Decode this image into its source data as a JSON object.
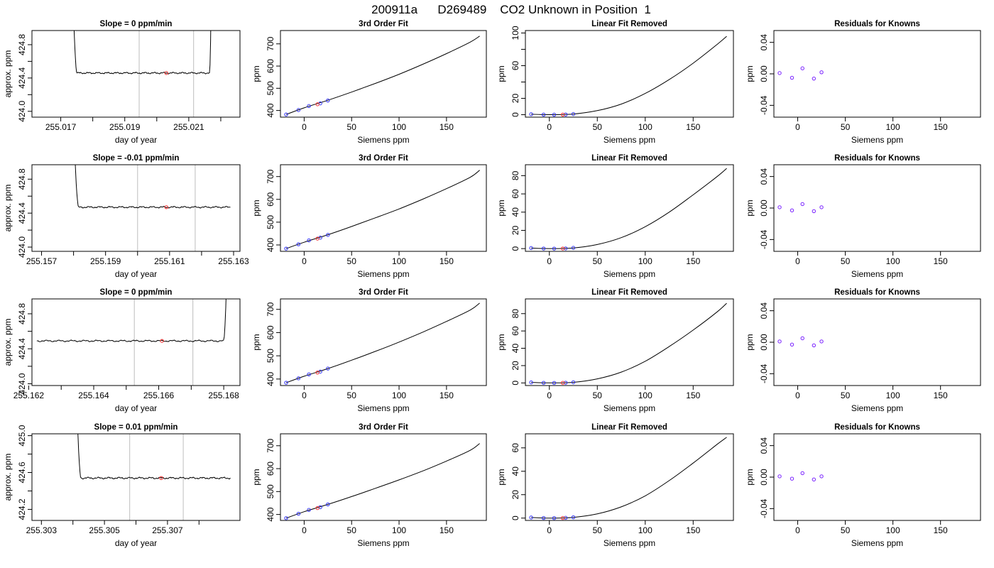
{
  "page": {
    "title": "200911a      D269489    CO2 Unknown in Position  1"
  },
  "colors": {
    "known_points": "#3333ff",
    "unknown_point": "#ff3333",
    "grid_lines": "#c8c8c8",
    "curve": "#000000"
  },
  "rows": [
    {
      "time": {
        "type": "line",
        "title": "Slope =  0  ppm/min",
        "xlabel": "day of year",
        "ylabel": "approx. ppm",
        "xlim": [
          255.0161,
          255.0226
        ],
        "ylim": [
          423.93,
          424.97
        ],
        "xticks": [
          "255.017",
          "255.019",
          "255.021"
        ],
        "xtick_values": [
          255.017,
          255.019,
          255.021
        ],
        "xminor_ticks": [
          255.018,
          255.02,
          255.022
        ],
        "yticks": [
          "424.0",
          "424.4",
          "424.8"
        ],
        "ytick_values": [
          424.0,
          424.4,
          424.8
        ],
        "yminor_ticks": [
          424.2,
          424.6
        ],
        "vlines": [
          255.01945,
          255.02115
        ],
        "trace": {
          "start": 255.01725,
          "end": 255.02175,
          "baseline": 424.46,
          "noise": 0.012,
          "rise_left": 255.0175,
          "rise_right": 255.02165
        },
        "unknown_point": [
          255.0203,
          424.46
        ]
      },
      "cubic": {
        "type": "line",
        "title": "3rd Order Fit",
        "xlabel": "Siemens ppm",
        "ylabel": "ppm",
        "xlim": [
          -25,
          192
        ],
        "ylim": [
          370,
          760
        ],
        "xticks": [
          "0",
          "50",
          "100",
          "150"
        ],
        "xtick_values": [
          0,
          50,
          100,
          150
        ],
        "yticks": [
          "400",
          "500",
          "600",
          "700"
        ],
        "ytick_values": [
          400,
          500,
          600,
          700
        ],
        "knowns": [
          [
            -19,
            382
          ],
          [
            -6,
            402
          ],
          [
            5,
            420
          ],
          [
            17,
            432
          ],
          [
            25,
            445
          ]
        ],
        "unknown": [
          14,
          428
        ],
        "curve_x": [
          -19,
          0,
          25,
          50,
          75,
          100,
          125,
          150,
          175,
          185
        ],
        "curve_y": [
          382,
          412,
          446,
          483,
          522,
          563,
          608,
          656,
          708,
          735
        ]
      },
      "linear_removed": {
        "type": "line",
        "title": "Linear Fit Removed",
        "xlabel": "Siemens ppm",
        "ylabel": "ppm",
        "xlim": [
          -25,
          192
        ],
        "ylim": [
          -3,
          103
        ],
        "xticks": [
          "0",
          "50",
          "100",
          "150"
        ],
        "xtick_values": [
          0,
          50,
          100,
          150
        ],
        "yticks": [
          "0",
          "20",
          "60",
          "100"
        ],
        "ytick_values": [
          0,
          20,
          60,
          100
        ],
        "yminor_ticks": [
          40,
          80
        ],
        "knowns": [
          [
            -19,
            0.6
          ],
          [
            -6,
            0.1
          ],
          [
            5,
            0
          ],
          [
            17,
            0.2
          ],
          [
            25,
            0.8
          ]
        ],
        "unknown": [
          14,
          0.1
        ],
        "curve_x": [
          -19,
          0,
          25,
          50,
          75,
          100,
          125,
          150,
          175,
          185
        ],
        "curve_y": [
          0.6,
          0,
          0.8,
          5,
          13,
          26,
          43,
          63,
          86,
          96
        ]
      },
      "residuals": {
        "type": "scatter",
        "title": "Residuals for Knowns",
        "xlabel": "Siemens ppm",
        "ylabel": "ppm",
        "xlim": [
          -25,
          192
        ],
        "ylim": [
          -0.055,
          0.055
        ],
        "xticks": [
          "0",
          "50",
          "100",
          "150"
        ],
        "xtick_values": [
          0,
          50,
          100,
          150
        ],
        "yticks": [
          "-0.04",
          "0.00",
          "0.04"
        ],
        "ytick_values": [
          -0.04,
          0.0,
          0.04
        ],
        "points": [
          [
            -19,
            0.001
          ],
          [
            -6,
            -0.005
          ],
          [
            5,
            0.007
          ],
          [
            17,
            -0.006
          ],
          [
            25,
            0.002
          ]
        ]
      }
    },
    {
      "time": {
        "type": "line",
        "title": "Slope =  -0.01  ppm/min",
        "xlabel": "day of year",
        "ylabel": "approx. ppm",
        "xlim": [
          255.1567,
          255.1632
        ],
        "ylim": [
          423.95,
          424.97
        ],
        "xticks": [
          "255.157",
          "255.159",
          "255.161",
          "255.163"
        ],
        "xtick_values": [
          255.157,
          255.159,
          255.161,
          255.163
        ],
        "xminor_ticks": [
          255.158,
          255.16,
          255.162
        ],
        "yticks": [
          "424.0",
          "424.4",
          "424.8"
        ],
        "ytick_values": [
          424.0,
          424.4,
          424.8
        ],
        "yminor_ticks": [
          424.2,
          424.6
        ],
        "vlines": [
          255.16,
          255.1618
        ],
        "trace": {
          "start": 255.15785,
          "end": 255.1629,
          "baseline": 424.47,
          "noise": 0.012,
          "rise_left": 255.15815,
          "rise_right": null
        },
        "unknown_point": [
          255.1609,
          424.47
        ]
      },
      "cubic": {
        "type": "line",
        "title": "3rd Order Fit",
        "xlabel": "Siemens ppm",
        "ylabel": "ppm",
        "xlim": [
          -25,
          192
        ],
        "ylim": [
          372,
          752
        ],
        "xticks": [
          "0",
          "50",
          "100",
          "150"
        ],
        "xtick_values": [
          0,
          50,
          100,
          150
        ],
        "yticks": [
          "400",
          "500",
          "600",
          "700"
        ],
        "ytick_values": [
          400,
          500,
          600,
          700
        ],
        "knowns": [
          [
            -19,
            384
          ],
          [
            -6,
            403
          ],
          [
            5,
            420
          ],
          [
            17,
            432
          ],
          [
            25,
            444
          ]
        ],
        "unknown": [
          14,
          428
        ],
        "curve_x": [
          -19,
          0,
          25,
          50,
          75,
          100,
          125,
          150,
          175,
          185
        ],
        "curve_y": [
          384,
          412,
          445,
          481,
          519,
          558,
          601,
          647,
          697,
          728
        ]
      },
      "linear_removed": {
        "type": "line",
        "title": "Linear Fit Removed",
        "xlabel": "Siemens ppm",
        "ylabel": "ppm",
        "xlim": [
          -25,
          192
        ],
        "ylim": [
          -3,
          92
        ],
        "xticks": [
          "0",
          "50",
          "100",
          "150"
        ],
        "xtick_values": [
          0,
          50,
          100,
          150
        ],
        "yticks": [
          "0",
          "20",
          "40",
          "60",
          "80"
        ],
        "ytick_values": [
          0,
          20,
          40,
          60,
          80
        ],
        "knowns": [
          [
            -19,
            0.6
          ],
          [
            -6,
            0.1
          ],
          [
            5,
            0
          ],
          [
            17,
            0.2
          ],
          [
            25,
            0.8
          ]
        ],
        "unknown": [
          14,
          0.1
        ],
        "curve_x": [
          -19,
          0,
          25,
          50,
          75,
          100,
          125,
          150,
          175,
          185
        ],
        "curve_y": [
          0.6,
          0,
          0.7,
          4.5,
          12,
          24,
          40,
          59,
          79,
          88
        ]
      },
      "residuals": {
        "type": "scatter",
        "title": "Residuals for Knowns",
        "xlabel": "Siemens ppm",
        "ylabel": "ppm",
        "xlim": [
          -25,
          192
        ],
        "ylim": [
          -0.055,
          0.055
        ],
        "xticks": [
          "0",
          "50",
          "100",
          "150"
        ],
        "xtick_values": [
          0,
          50,
          100,
          150
        ],
        "yticks": [
          "-0.04",
          "0.00",
          "0.04"
        ],
        "ytick_values": [
          -0.04,
          0.0,
          0.04
        ],
        "points": [
          [
            -19,
            0.001
          ],
          [
            -6,
            -0.003
          ],
          [
            5,
            0.005
          ],
          [
            17,
            -0.004
          ],
          [
            25,
            0.001
          ]
        ]
      }
    },
    {
      "time": {
        "type": "line",
        "title": "Slope =  0  ppm/min",
        "xlabel": "day of year",
        "ylabel": "approx. ppm",
        "xlim": [
          255.1621,
          255.1685
        ],
        "ylim": [
          423.98,
          424.97
        ],
        "xticks": [
          "255.162",
          "255.164",
          "255.166",
          "255.168"
        ],
        "xtick_values": [
          255.162,
          255.164,
          255.166,
          255.168
        ],
        "xminor_ticks": [
          255.163,
          255.165,
          255.167
        ],
        "yticks": [
          "424.0",
          "424.4",
          "424.8"
        ],
        "ytick_values": [
          424.0,
          424.4,
          424.8
        ],
        "yminor_ticks": [
          424.2,
          424.6
        ],
        "vlines": [
          255.16525,
          255.16705
        ],
        "trace": {
          "start": 255.16225,
          "end": 255.1682,
          "baseline": 424.49,
          "noise": 0.012,
          "rise_left": null,
          "rise_right": 255.168
        },
        "unknown_point": [
          255.1661,
          424.49
        ]
      },
      "cubic": {
        "type": "line",
        "title": "3rd Order Fit",
        "xlabel": "Siemens ppm",
        "ylabel": "ppm",
        "xlim": [
          -25,
          192
        ],
        "ylim": [
          372,
          745
        ],
        "xticks": [
          "0",
          "50",
          "100",
          "150"
        ],
        "xtick_values": [
          0,
          50,
          100,
          150
        ],
        "yticks": [
          "400",
          "500",
          "600",
          "700"
        ],
        "ytick_values": [
          400,
          500,
          600,
          700
        ],
        "knowns": [
          [
            -19,
            384
          ],
          [
            -6,
            403
          ],
          [
            5,
            420
          ],
          [
            17,
            432
          ],
          [
            25,
            445
          ]
        ],
        "unknown": [
          14,
          428
        ],
        "curve_x": [
          -19,
          0,
          25,
          50,
          75,
          100,
          125,
          150,
          175,
          185
        ],
        "curve_y": [
          384,
          412,
          445,
          481,
          519,
          559,
          602,
          648,
          697,
          727
        ]
      },
      "linear_removed": {
        "type": "line",
        "title": "Linear Fit Removed",
        "xlabel": "Siemens ppm",
        "ylabel": "ppm",
        "xlim": [
          -25,
          192
        ],
        "ylim": [
          -3,
          97
        ],
        "xticks": [
          "0",
          "50",
          "100",
          "150"
        ],
        "xtick_values": [
          0,
          50,
          100,
          150
        ],
        "yticks": [
          "0",
          "20",
          "40",
          "60",
          "80"
        ],
        "ytick_values": [
          0,
          20,
          40,
          60,
          80
        ],
        "knowns": [
          [
            -19,
            0.6
          ],
          [
            -6,
            0.1
          ],
          [
            5,
            0
          ],
          [
            17,
            0.2
          ],
          [
            25,
            0.8
          ]
        ],
        "unknown": [
          14,
          0.1
        ],
        "curve_x": [
          -19,
          0,
          25,
          50,
          75,
          100,
          125,
          150,
          175,
          185
        ],
        "curve_y": [
          0.6,
          0,
          0.7,
          4.7,
          12.5,
          25,
          42,
          61,
          82,
          92
        ]
      },
      "residuals": {
        "type": "scatter",
        "title": "Residuals for Knowns",
        "xlabel": "Siemens ppm",
        "ylabel": "ppm",
        "xlim": [
          -25,
          192
        ],
        "ylim": [
          -0.055,
          0.055
        ],
        "xticks": [
          "0",
          "50",
          "100",
          "150"
        ],
        "xtick_values": [
          0,
          50,
          100,
          150
        ],
        "yticks": [
          "-0.04",
          "0.00",
          "0.04"
        ],
        "ytick_values": [
          -0.04,
          0.0,
          0.04
        ],
        "points": [
          [
            -19,
            0.001
          ],
          [
            -6,
            -0.003
          ],
          [
            5,
            0.005
          ],
          [
            17,
            -0.004
          ],
          [
            25,
            0.001
          ]
        ]
      }
    },
    {
      "time": {
        "type": "line",
        "title": "Slope =  0.01  ppm/min",
        "xlabel": "day of year",
        "ylabel": "approx. ppm",
        "xlim": [
          255.3027,
          255.3093
        ],
        "ylim": [
          424.08,
          425.02
        ],
        "xticks": [
          "255.303",
          "255.305",
          "255.307"
        ],
        "xtick_values": [
          255.303,
          255.305,
          255.307
        ],
        "xminor_ticks": [
          255.304,
          255.306,
          255.308
        ],
        "yticks": [
          "424.2",
          "424.6",
          "425.0"
        ],
        "ytick_values": [
          424.2,
          424.6,
          425.0
        ],
        "yminor_ticks": [
          424.4,
          424.8
        ],
        "vlines": [
          255.3058,
          255.3075
        ],
        "trace": {
          "start": 255.30395,
          "end": 255.309,
          "baseline": 424.54,
          "noise": 0.012,
          "rise_left": 255.30425,
          "rise_right": null
        },
        "unknown_point": [
          255.3068,
          424.54
        ]
      },
      "cubic": {
        "type": "line",
        "title": "3rd Order Fit",
        "xlabel": "Siemens ppm",
        "ylabel": "ppm",
        "xlim": [
          -25,
          192
        ],
        "ylim": [
          374,
          752
        ],
        "xticks": [
          "0",
          "50",
          "100",
          "150"
        ],
        "xtick_values": [
          0,
          50,
          100,
          150
        ],
        "yticks": [
          "400",
          "500",
          "600",
          "700"
        ],
        "ytick_values": [
          400,
          500,
          600,
          700
        ],
        "knowns": [
          [
            -19,
            384
          ],
          [
            -6,
            403
          ],
          [
            5,
            420
          ],
          [
            17,
            432
          ],
          [
            25,
            444
          ]
        ],
        "unknown": [
          14,
          428
        ],
        "curve_x": [
          -19,
          0,
          25,
          50,
          75,
          100,
          125,
          150,
          175,
          185
        ],
        "curve_y": [
          384,
          412,
          444,
          478,
          514,
          551,
          590,
          633,
          680,
          710
        ]
      },
      "linear_removed": {
        "type": "line",
        "title": "Linear Fit Removed",
        "xlabel": "Siemens ppm",
        "ylabel": "ppm",
        "xlim": [
          -25,
          192
        ],
        "ylim": [
          -2,
          72
        ],
        "xticks": [
          "0",
          "50",
          "100",
          "150"
        ],
        "xtick_values": [
          0,
          50,
          100,
          150
        ],
        "yticks": [
          "0",
          "20",
          "40",
          "60"
        ],
        "ytick_values": [
          0,
          20,
          40,
          60
        ],
        "knowns": [
          [
            -19,
            0.5
          ],
          [
            -6,
            0.1
          ],
          [
            5,
            0
          ],
          [
            17,
            0.2
          ],
          [
            25,
            0.7
          ]
        ],
        "unknown": [
          14,
          0.1
        ],
        "curve_x": [
          -19,
          0,
          25,
          50,
          75,
          100,
          125,
          150,
          175,
          185
        ],
        "curve_y": [
          0.5,
          0,
          0.6,
          3.6,
          9.6,
          19,
          32,
          47,
          63,
          69
        ]
      },
      "residuals": {
        "type": "scatter",
        "title": "Residuals for Knowns",
        "xlabel": "Siemens ppm",
        "ylabel": "ppm",
        "xlim": [
          -25,
          192
        ],
        "ylim": [
          -0.055,
          0.055
        ],
        "xticks": [
          "0",
          "50",
          "100",
          "150"
        ],
        "xtick_values": [
          0,
          50,
          100,
          150
        ],
        "yticks": [
          "-0.04",
          "0.00",
          "0.04"
        ],
        "ytick_values": [
          -0.04,
          0.0,
          0.04
        ],
        "points": [
          [
            -19,
            0.001
          ],
          [
            -6,
            -0.002
          ],
          [
            5,
            0.005
          ],
          [
            17,
            -0.003
          ],
          [
            25,
            0.001
          ]
        ]
      }
    }
  ]
}
